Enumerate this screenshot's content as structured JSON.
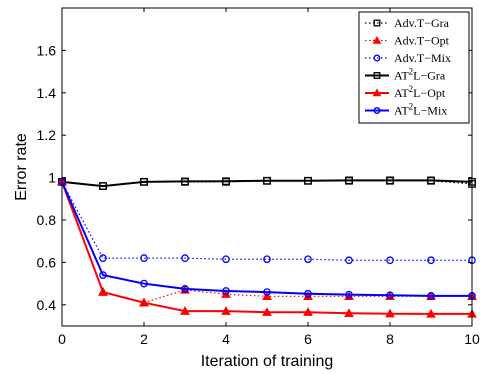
{
  "chart_data": {
    "type": "line",
    "xlabel": "Iteration of training",
    "ylabel": "Error rate",
    "xlim": [
      0,
      10
    ],
    "ylim": [
      0.3,
      1.8
    ],
    "x_ticks": [
      0,
      2,
      4,
      6,
      8,
      10
    ],
    "y_ticks": [
      0.4,
      0.6,
      0.8,
      1,
      1.2,
      1.4,
      1.6
    ],
    "y_tick_labels": [
      "0.4",
      "0.6",
      "0.8",
      "1",
      "1.2",
      "1.4",
      "1.6"
    ],
    "grid": false,
    "legend_position": "top-right",
    "x": [
      0,
      1,
      2,
      3,
      4,
      5,
      6,
      7,
      8,
      9,
      10
    ],
    "series": [
      {
        "name": "Adv.T−Gra",
        "name_main": "Adv.T−Gra",
        "name_sup": "",
        "name_tail": "",
        "color": "#000000",
        "line": "dotted",
        "marker": "square",
        "values": [
          0.98,
          0.96,
          0.98,
          0.98,
          0.98,
          0.985,
          0.985,
          0.985,
          0.985,
          0.985,
          0.97
        ]
      },
      {
        "name": "Adv.T−Opt",
        "name_main": "Adv.T−Opt",
        "name_sup": "",
        "name_tail": "",
        "color": "#ff0000",
        "line": "dotted",
        "marker": "triangle",
        "values": [
          0.98,
          0.46,
          0.41,
          0.47,
          0.45,
          0.44,
          0.44,
          0.44,
          0.44,
          0.44,
          0.44
        ]
      },
      {
        "name": "Adv.T−Mix",
        "name_main": "Adv.T−Mix",
        "name_sup": "",
        "name_tail": "",
        "color": "#0000ff",
        "line": "dotted",
        "marker": "circle",
        "values": [
          0.98,
          0.62,
          0.62,
          0.62,
          0.615,
          0.615,
          0.615,
          0.61,
          0.61,
          0.61,
          0.61
        ]
      },
      {
        "name": "AT2L−Gra",
        "name_main": "AT",
        "name_sup": "2",
        "name_tail": "L−Gra",
        "color": "#000000",
        "line": "solid",
        "marker": "square",
        "values": [
          0.98,
          0.96,
          0.98,
          0.982,
          0.983,
          0.985,
          0.985,
          0.987,
          0.987,
          0.987,
          0.98
        ]
      },
      {
        "name": "AT2L−Opt",
        "name_main": "AT",
        "name_sup": "2",
        "name_tail": "L−Opt",
        "color": "#ff0000",
        "line": "solid",
        "marker": "triangle",
        "values": [
          0.98,
          0.46,
          0.41,
          0.37,
          0.37,
          0.365,
          0.365,
          0.36,
          0.358,
          0.357,
          0.357
        ]
      },
      {
        "name": "AT2L−Mix",
        "name_main": "AT",
        "name_sup": "2",
        "name_tail": "L−Mix",
        "color": "#0000ff",
        "line": "solid",
        "marker": "circle",
        "values": [
          0.98,
          0.54,
          0.5,
          0.475,
          0.465,
          0.46,
          0.452,
          0.448,
          0.445,
          0.442,
          0.442
        ]
      }
    ]
  }
}
